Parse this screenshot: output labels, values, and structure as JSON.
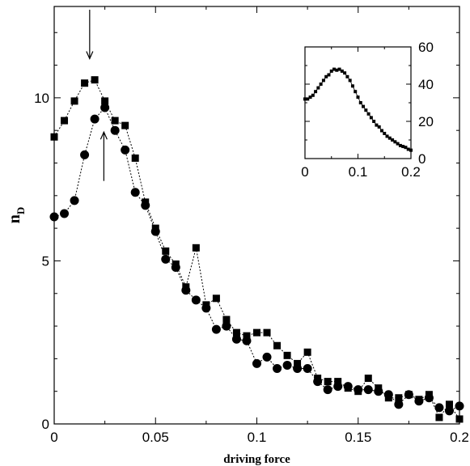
{
  "chart_data": [
    {
      "type": "scatter",
      "title": "",
      "xlabel": "driving force",
      "ylabel_main": "n",
      "ylabel_sub": "D",
      "xlim": [
        0,
        0.2
      ],
      "ylim": [
        0,
        12.8
      ],
      "x_ticks": [
        0,
        0.05,
        0.1,
        0.15,
        0.2
      ],
      "x_tick_labels": [
        "0",
        "0.05",
        "0.1",
        "0.15",
        "0.2"
      ],
      "y_ticks": [
        0,
        5,
        10
      ],
      "y_tick_labels": [
        "0",
        "5",
        "10"
      ],
      "grid": false,
      "series": [
        {
          "marker": "square",
          "x": [
            0,
            0.005,
            0.01,
            0.015,
            0.02,
            0.025,
            0.03,
            0.035,
            0.04,
            0.045,
            0.05,
            0.055,
            0.06,
            0.065,
            0.07,
            0.075,
            0.08,
            0.085,
            0.09,
            0.095,
            0.1,
            0.105,
            0.11,
            0.115,
            0.12,
            0.125,
            0.13,
            0.135,
            0.14,
            0.145,
            0.15,
            0.155,
            0.16,
            0.165,
            0.17,
            0.175,
            0.18,
            0.185,
            0.19,
            0.195,
            0.2
          ],
          "y": [
            8.8,
            9.3,
            9.9,
            10.45,
            10.55,
            9.9,
            9.3,
            9.15,
            8.15,
            6.8,
            6.0,
            5.3,
            4.9,
            4.2,
            5.4,
            3.65,
            3.85,
            3.2,
            2.8,
            2.7,
            2.8,
            2.8,
            2.4,
            2.1,
            1.85,
            2.2,
            1.4,
            1.3,
            1.3,
            1.1,
            1.0,
            1.4,
            1.1,
            0.8,
            0.8,
            0.9,
            0.75,
            0.9,
            0.2,
            0.6,
            0.15
          ]
        },
        {
          "marker": "circle",
          "x": [
            0,
            0.005,
            0.01,
            0.015,
            0.02,
            0.025,
            0.03,
            0.035,
            0.04,
            0.045,
            0.05,
            0.055,
            0.06,
            0.065,
            0.07,
            0.075,
            0.08,
            0.085,
            0.09,
            0.095,
            0.1,
            0.105,
            0.11,
            0.115,
            0.12,
            0.125,
            0.13,
            0.135,
            0.14,
            0.145,
            0.15,
            0.155,
            0.16,
            0.165,
            0.17,
            0.175,
            0.18,
            0.185,
            0.19,
            0.195,
            0.2
          ],
          "y": [
            6.35,
            6.45,
            6.85,
            8.25,
            9.35,
            9.7,
            9.0,
            8.4,
            7.1,
            6.7,
            5.9,
            5.05,
            4.8,
            4.1,
            3.8,
            3.55,
            2.9,
            3.0,
            2.6,
            2.55,
            1.85,
            2.05,
            1.7,
            1.8,
            1.7,
            1.7,
            1.3,
            1.05,
            1.15,
            1.15,
            1.05,
            1.05,
            1.0,
            0.9,
            0.6,
            0.9,
            0.7,
            0.8,
            0.5,
            0.4,
            0.55
          ]
        }
      ],
      "annotations": [
        {
          "type": "arrow",
          "direction": "down",
          "x": 0.0175,
          "y_tip": 11.2,
          "y_tail": 12.7
        },
        {
          "type": "arrow",
          "direction": "up",
          "x": 0.0245,
          "y_tip": 8.95,
          "y_tail": 7.45
        }
      ]
    },
    {
      "type": "scatter",
      "title": "",
      "xlim": [
        0,
        0.2
      ],
      "ylim": [
        0,
        60
      ],
      "x_ticks": [
        0,
        0.1,
        0.2
      ],
      "x_tick_labels": [
        "0",
        "0.1",
        "0.2"
      ],
      "y_ticks": [
        0,
        20,
        40,
        60
      ],
      "y_tick_labels": [
        "0",
        "20",
        "40",
        "60"
      ],
      "y_axis_side": "right",
      "grid": false,
      "series": [
        {
          "marker": "square",
          "x": [
            0,
            0.005,
            0.01,
            0.015,
            0.02,
            0.025,
            0.03,
            0.035,
            0.04,
            0.045,
            0.05,
            0.055,
            0.06,
            0.065,
            0.07,
            0.075,
            0.08,
            0.085,
            0.09,
            0.095,
            0.1,
            0.105,
            0.11,
            0.115,
            0.12,
            0.125,
            0.13,
            0.135,
            0.14,
            0.145,
            0.15,
            0.155,
            0.16,
            0.165,
            0.17,
            0.175,
            0.18,
            0.185,
            0.19,
            0.195,
            0.2
          ],
          "y": [
            32,
            32,
            33,
            34,
            36,
            38,
            40,
            42,
            44,
            45,
            47,
            48,
            47.5,
            48,
            47,
            46,
            44,
            42,
            39,
            36,
            33,
            30,
            28,
            26,
            24,
            22,
            20,
            18,
            17,
            15,
            13.5,
            12,
            11,
            10,
            9,
            8,
            7,
            6.5,
            6,
            5,
            4.5
          ]
        }
      ]
    }
  ]
}
